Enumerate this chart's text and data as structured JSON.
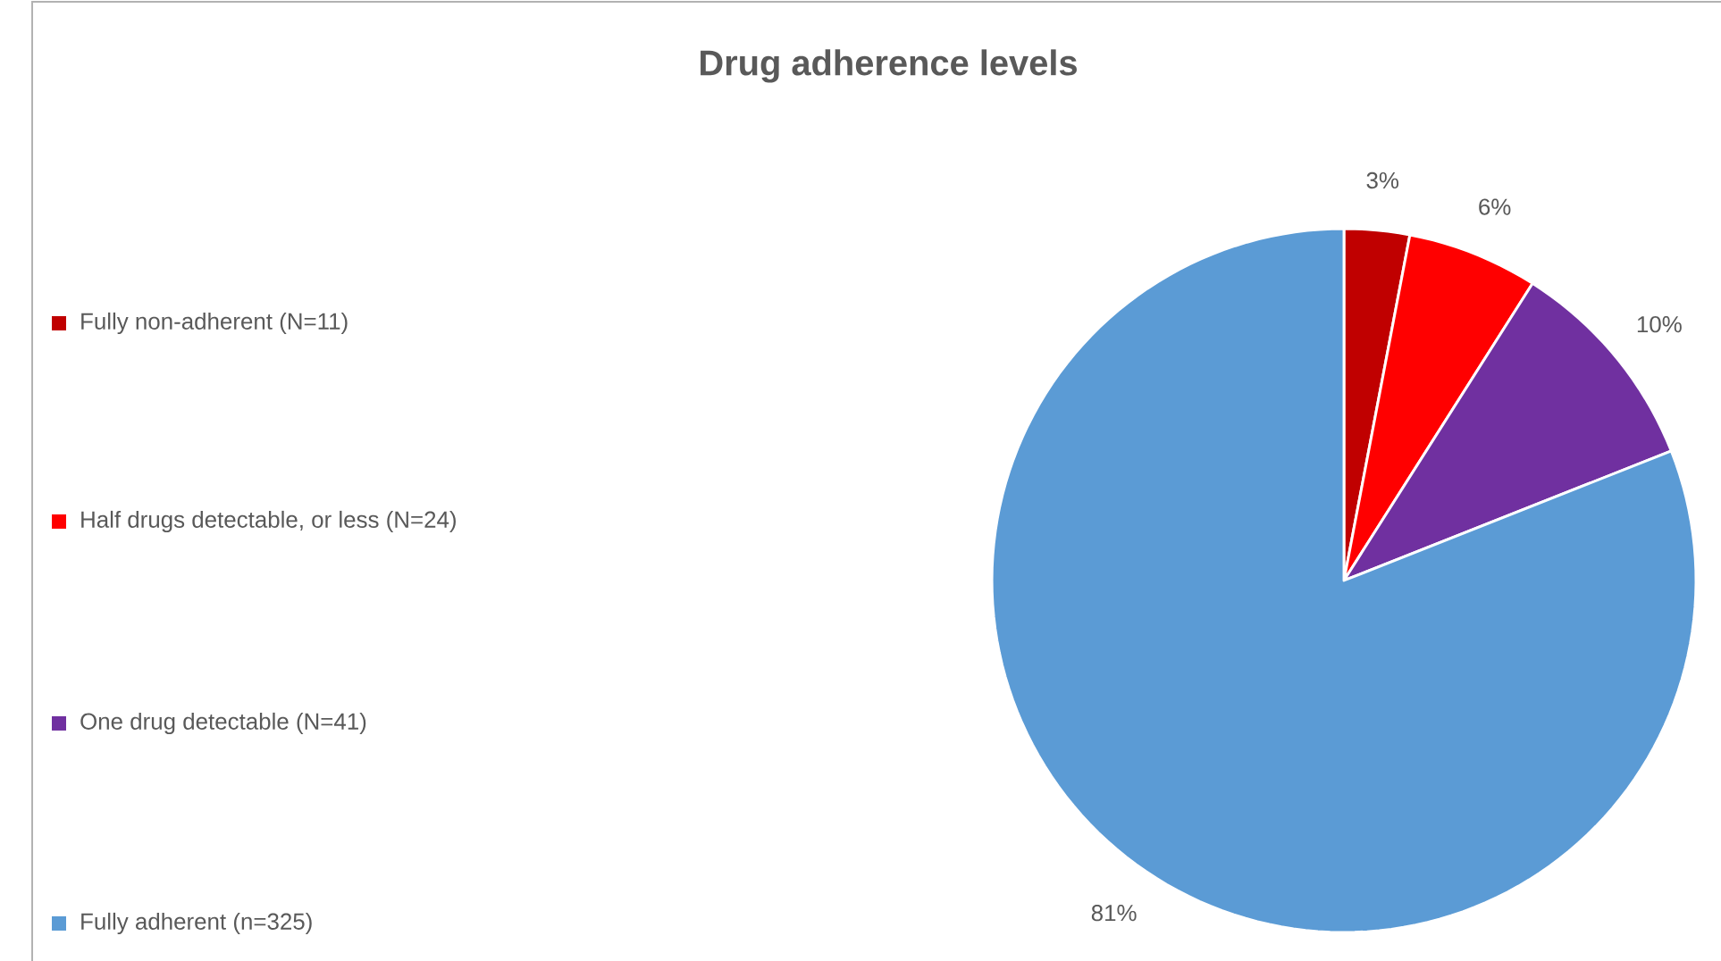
{
  "chart_data": {
    "type": "pie",
    "title": "Drug adherence levels",
    "categories": [
      "Fully non-adherent  (N=11)",
      "Half drugs detectable, or less (N=24)",
      "One drug  detectable  (N=41)",
      "Fully adherent  (n=325)"
    ],
    "values": [
      3,
      6,
      10,
      81
    ],
    "value_labels": [
      "3%",
      "6%",
      "10%",
      "81%"
    ],
    "colors": [
      "#c00000",
      "#ff0000",
      "#7030a0",
      "#5b9bd5"
    ],
    "legend": "left"
  }
}
